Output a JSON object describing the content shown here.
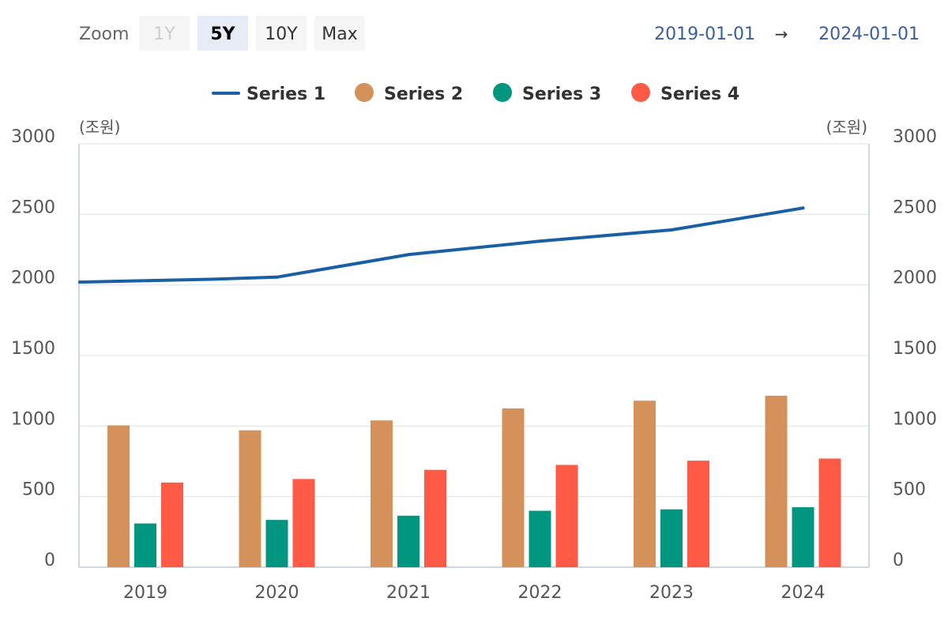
{
  "toolbar": {
    "zoom_label": "Zoom",
    "buttons": [
      {
        "label": "1Y",
        "state": "disabled"
      },
      {
        "label": "5Y",
        "state": "active"
      },
      {
        "label": "10Y",
        "state": "normal"
      },
      {
        "label": "Max",
        "state": "normal"
      }
    ],
    "range_start": "2019-01-01",
    "range_separator": "→",
    "range_end": "2024-01-01"
  },
  "colors": {
    "series1": "#1a5fa3",
    "series2": "#d4915a",
    "series3": "#00967f",
    "series4": "#ff5a46"
  },
  "chart_data": {
    "type": "bar",
    "categories": [
      "2019",
      "2020",
      "2021",
      "2022",
      "2023",
      "2024"
    ],
    "y_unit_left": "(조원)",
    "y_unit_right": "(조원)",
    "ylim": [
      0,
      3000
    ],
    "yticks": [
      0,
      500,
      1000,
      1500,
      2000,
      2500,
      3000
    ],
    "grid": true,
    "legend_position": "top-center",
    "line_series": {
      "name": "Series 1",
      "type": "line",
      "x": [
        2019.0,
        2019.5,
        2020.0,
        2021.0,
        2022.0,
        2023.0,
        2024.0
      ],
      "values": [
        2020,
        2040,
        2055,
        2215,
        2310,
        2390,
        2545
      ]
    },
    "bar_series": [
      {
        "name": "Series 2",
        "values": [
          1005,
          970,
          1040,
          1125,
          1180,
          1215
        ]
      },
      {
        "name": "Series 3",
        "values": [
          310,
          335,
          365,
          400,
          410,
          425
        ]
      },
      {
        "name": "Series 4",
        "values": [
          600,
          625,
          690,
          725,
          755,
          770
        ]
      }
    ]
  }
}
